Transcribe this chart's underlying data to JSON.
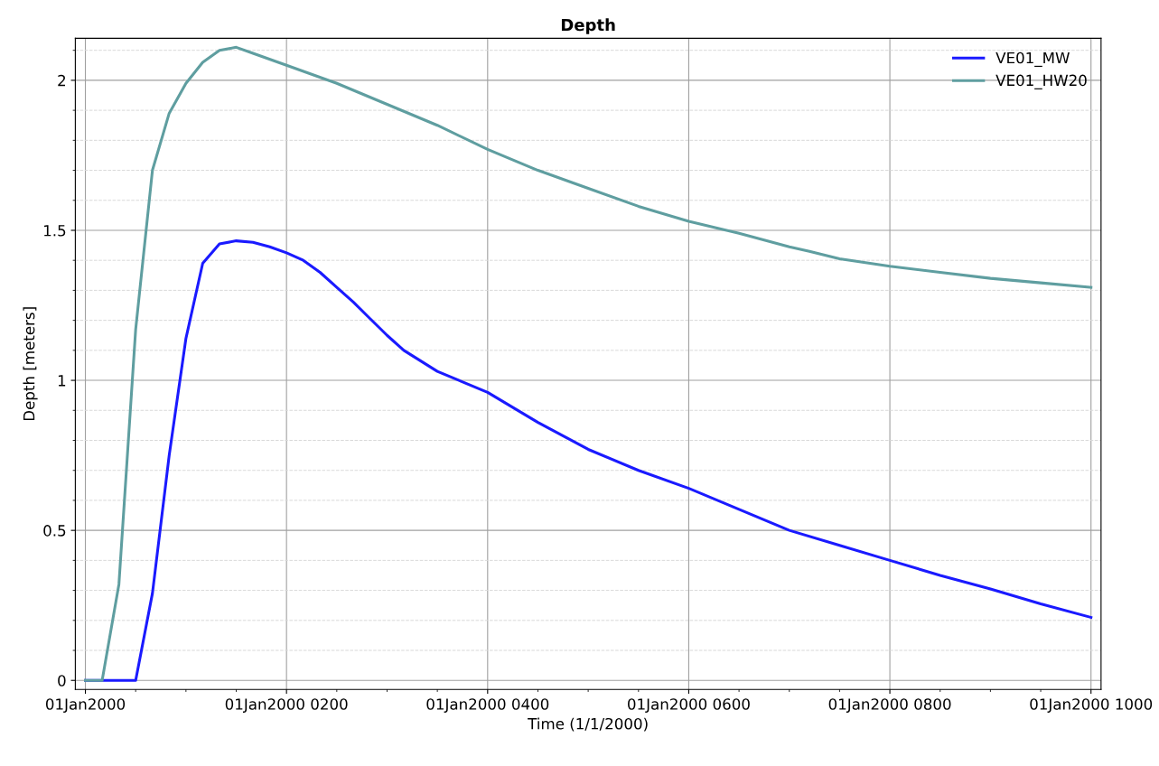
{
  "chart_data": {
    "type": "line",
    "title": "Depth",
    "xlabel": "Time (1/1/2000)",
    "ylabel": "Depth [meters]",
    "xlim": [
      "1999-12-31T23:54",
      "2000-01-01T10:06"
    ],
    "ylim": [
      -0.03,
      2.14
    ],
    "xticks": [
      {
        "value": "2000-01-01T00:00",
        "label": "01Jan2000"
      },
      {
        "value": "2000-01-01T02:00",
        "label": "01Jan2000 0200"
      },
      {
        "value": "2000-01-01T04:00",
        "label": "01Jan2000 0400"
      },
      {
        "value": "2000-01-01T06:00",
        "label": "01Jan2000 0600"
      },
      {
        "value": "2000-01-01T08:00",
        "label": "01Jan2000 0800"
      },
      {
        "value": "2000-01-01T10:00",
        "label": "01Jan2000 1000"
      }
    ],
    "yticks": [
      0,
      0.5,
      1,
      1.5,
      2
    ],
    "grid": true,
    "legend": "top right",
    "marker": "none",
    "line_style": "solid",
    "series": [
      {
        "name": "VE01_MW",
        "color": "#1a1aff",
        "x": [
          "2000-01-01T00:00",
          "2000-01-01T00:30",
          "2000-01-01T00:40",
          "2000-01-01T00:50",
          "2000-01-01T01:00",
          "2000-01-01T01:10",
          "2000-01-01T01:20",
          "2000-01-01T01:30",
          "2000-01-01T01:40",
          "2000-01-01T01:50",
          "2000-01-01T02:00",
          "2000-01-01T02:10",
          "2000-01-01T02:20",
          "2000-01-01T02:30",
          "2000-01-01T02:40",
          "2000-01-01T02:50",
          "2000-01-01T03:00",
          "2000-01-01T03:10",
          "2000-01-01T03:30",
          "2000-01-01T04:00",
          "2000-01-01T04:30",
          "2000-01-01T05:00",
          "2000-01-01T05:30",
          "2000-01-01T06:00",
          "2000-01-01T06:30",
          "2000-01-01T07:00",
          "2000-01-01T07:30",
          "2000-01-01T08:00",
          "2000-01-01T08:30",
          "2000-01-01T09:00",
          "2000-01-01T09:30",
          "2000-01-01T10:00"
        ],
        "values": [
          0,
          0,
          0.29,
          0.75,
          1.14,
          1.39,
          1.455,
          1.465,
          1.46,
          1.445,
          1.425,
          1.4,
          1.36,
          1.31,
          1.26,
          1.205,
          1.15,
          1.1,
          1.03,
          0.96,
          0.86,
          0.77,
          0.7,
          0.64,
          0.57,
          0.5,
          0.45,
          0.4,
          0.35,
          0.305,
          0.255,
          0.21
        ]
      },
      {
        "name": "VE01_HW20",
        "color": "#5f9ea0",
        "x": [
          "2000-01-01T00:00",
          "2000-01-01T00:10",
          "2000-01-01T00:20",
          "2000-01-01T00:30",
          "2000-01-01T00:40",
          "2000-01-01T00:50",
          "2000-01-01T01:00",
          "2000-01-01T01:10",
          "2000-01-01T01:20",
          "2000-01-01T01:30",
          "2000-01-01T01:40",
          "2000-01-01T02:00",
          "2000-01-01T02:30",
          "2000-01-01T03:00",
          "2000-01-01T03:30",
          "2000-01-01T04:00",
          "2000-01-01T04:30",
          "2000-01-01T05:00",
          "2000-01-01T05:30",
          "2000-01-01T06:00",
          "2000-01-01T06:30",
          "2000-01-01T07:00",
          "2000-01-01T07:12",
          "2000-01-01T07:30",
          "2000-01-01T08:00",
          "2000-01-01T08:30",
          "2000-01-01T09:00",
          "2000-01-01T09:30",
          "2000-01-01T10:00"
        ],
        "values": [
          0,
          0,
          0.32,
          1.17,
          1.7,
          1.89,
          1.99,
          2.06,
          2.1,
          2.11,
          2.09,
          2.05,
          1.99,
          1.92,
          1.85,
          1.77,
          1.7,
          1.64,
          1.58,
          1.53,
          1.49,
          1.445,
          1.43,
          1.405,
          1.38,
          1.36,
          1.34,
          1.325,
          1.31
        ]
      }
    ]
  }
}
